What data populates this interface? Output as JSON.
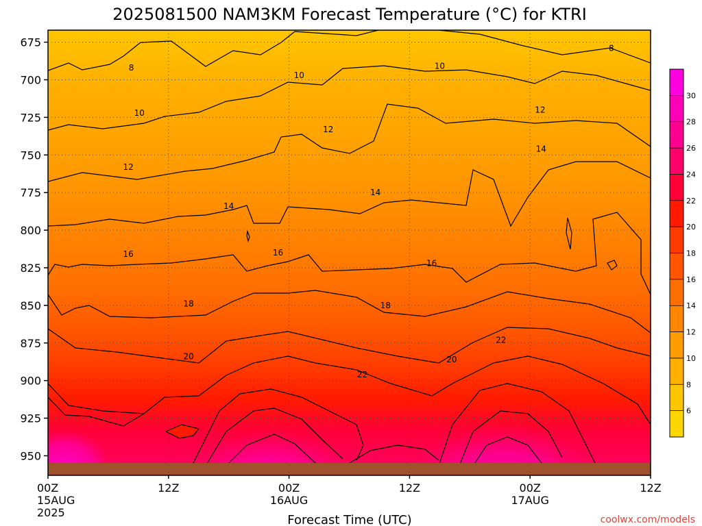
{
  "chart_data": {
    "type": "heatmap",
    "title": "2025081500 NAM3KM Forecast Temperature (°C) for KTRI",
    "xlabel": "Forecast Time (UTC)",
    "ylabel": "",
    "credit": "coolwx.com/models",
    "x_ticks": [
      {
        "hour": 0,
        "lines": [
          "00Z",
          "15AUG",
          "2025"
        ]
      },
      {
        "hour": 12,
        "lines": [
          "12Z"
        ]
      },
      {
        "hour": 24,
        "lines": [
          "00Z",
          "16AUG"
        ]
      },
      {
        "hour": 36,
        "lines": [
          "12Z"
        ]
      },
      {
        "hour": 48,
        "lines": [
          "00Z",
          "17AUG"
        ]
      },
      {
        "hour": 60,
        "lines": [
          "12Z"
        ]
      }
    ],
    "xlim": [
      0,
      60
    ],
    "y_ticks": [
      675,
      700,
      725,
      750,
      775,
      800,
      825,
      850,
      875,
      900,
      925,
      950
    ],
    "ylim_hpa": [
      667,
      963
    ],
    "surface_pressure_hpa": 960,
    "grid": true,
    "colorbar": {
      "labels": [
        6,
        8,
        10,
        12,
        14,
        16,
        18,
        20,
        22,
        24,
        26,
        28,
        30
      ],
      "colors": [
        "#ffd700",
        "#ffc600",
        "#ffb000",
        "#ff9d00",
        "#ff8600",
        "#ff6f00",
        "#ff5500",
        "#ff3a00",
        "#ff1a00",
        "#ff0038",
        "#ff0068",
        "#ff0090",
        "#ff00b8",
        "#ff00e0"
      ]
    },
    "contour_labels": [
      {
        "value": "8",
        "hour": 8.3,
        "p": 692
      },
      {
        "value": "8",
        "hour": 56.1,
        "p": 679
      },
      {
        "value": "10",
        "hour": 9.1,
        "p": 722
      },
      {
        "value": "10",
        "hour": 25.0,
        "p": 697
      },
      {
        "value": "10",
        "hour": 39.0,
        "p": 691
      },
      {
        "value": "12",
        "hour": 8.0,
        "p": 758
      },
      {
        "value": "12",
        "hour": 27.9,
        "p": 733
      },
      {
        "value": "12",
        "hour": 49.0,
        "p": 720
      },
      {
        "value": "14",
        "hour": 18.0,
        "p": 784
      },
      {
        "value": "14",
        "hour": 32.6,
        "p": 775
      },
      {
        "value": "14",
        "hour": 49.1,
        "p": 746
      },
      {
        "value": "16",
        "hour": 8.0,
        "p": 816
      },
      {
        "value": "16",
        "hour": 22.9,
        "p": 815
      },
      {
        "value": "16",
        "hour": 38.2,
        "p": 822
      },
      {
        "value": "18",
        "hour": 14.0,
        "p": 849
      },
      {
        "value": "18",
        "hour": 33.6,
        "p": 850
      },
      {
        "value": "20",
        "hour": 14.0,
        "p": 884
      },
      {
        "value": "20",
        "hour": 40.2,
        "p": 886
      },
      {
        "value": "22",
        "hour": 31.3,
        "p": 896
      },
      {
        "value": "22",
        "hour": 45.1,
        "p": 873
      }
    ]
  }
}
